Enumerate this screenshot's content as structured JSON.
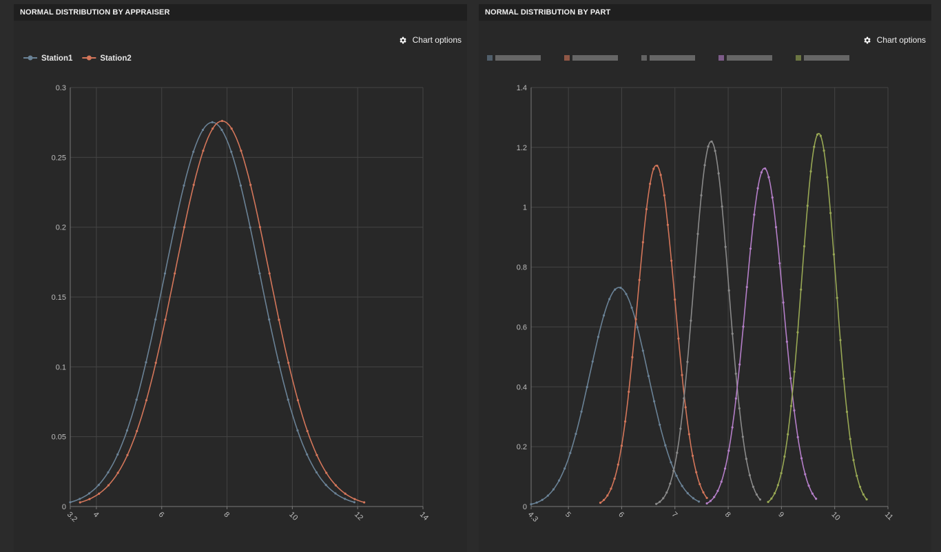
{
  "panels": {
    "left": {
      "title": "NORMAL DISTRIBUTION BY APPRAISER",
      "options_label": "Chart options"
    },
    "right": {
      "title": "NORMAL DISTRIBUTION BY PART",
      "options_label": "Chart options"
    }
  },
  "icons": {
    "options": "gear-icon"
  },
  "colors": {
    "background": "#2b2b2b",
    "grid": "#444444",
    "text": "#bdbdbd"
  },
  "chart_data": [
    {
      "type": "line",
      "title": "NORMAL DISTRIBUTION BY APPRAISER",
      "xlim": [
        3.2,
        14
      ],
      "ylim": [
        0,
        0.3
      ],
      "x_ticks": [
        "3.2",
        "4",
        "6",
        "8",
        "10",
        "12",
        "14"
      ],
      "y_ticks": [
        "0",
        "0.05",
        "0.1",
        "0.15",
        "0.2",
        "0.25",
        "0.3"
      ],
      "grid": true,
      "legend": "top-left",
      "series": [
        {
          "name": "Station1",
          "color": "#6a8296",
          "mean": 7.55,
          "sd": 1.45,
          "x_range": [
            3.2,
            11.9
          ]
        },
        {
          "name": "Station2",
          "color": "#d4765a",
          "mean": 7.85,
          "sd": 1.445,
          "x_range": [
            3.5,
            12.2
          ]
        }
      ]
    },
    {
      "type": "line",
      "title": "NORMAL DISTRIBUTION BY PART",
      "xlim": [
        4.3,
        11
      ],
      "ylim": [
        0,
        1.4
      ],
      "x_ticks": [
        "4.3",
        "5",
        "6",
        "7",
        "8",
        "9",
        "10",
        "11"
      ],
      "y_ticks": [
        "0",
        "0.2",
        "0.4",
        "0.6",
        "0.8",
        "1",
        "1.2",
        "1.4"
      ],
      "grid": true,
      "legend": "top-left",
      "series": [
        {
          "color": "#6a8296",
          "mean": 5.95,
          "sd": 0.545,
          "x_range": [
            4.3,
            7.45
          ]
        },
        {
          "color": "#d4765a",
          "mean": 6.65,
          "sd": 0.35,
          "x_range": [
            5.6,
            7.6
          ]
        },
        {
          "color": "#8a8a8a",
          "mean": 7.68,
          "sd": 0.327,
          "x_range": [
            6.65,
            8.6
          ]
        },
        {
          "color": "#b57fc9",
          "mean": 8.68,
          "sd": 0.353,
          "x_range": [
            7.6,
            9.65
          ]
        },
        {
          "color": "#98a854",
          "mean": 9.7,
          "sd": 0.32,
          "x_range": [
            8.75,
            10.6
          ]
        }
      ]
    }
  ]
}
